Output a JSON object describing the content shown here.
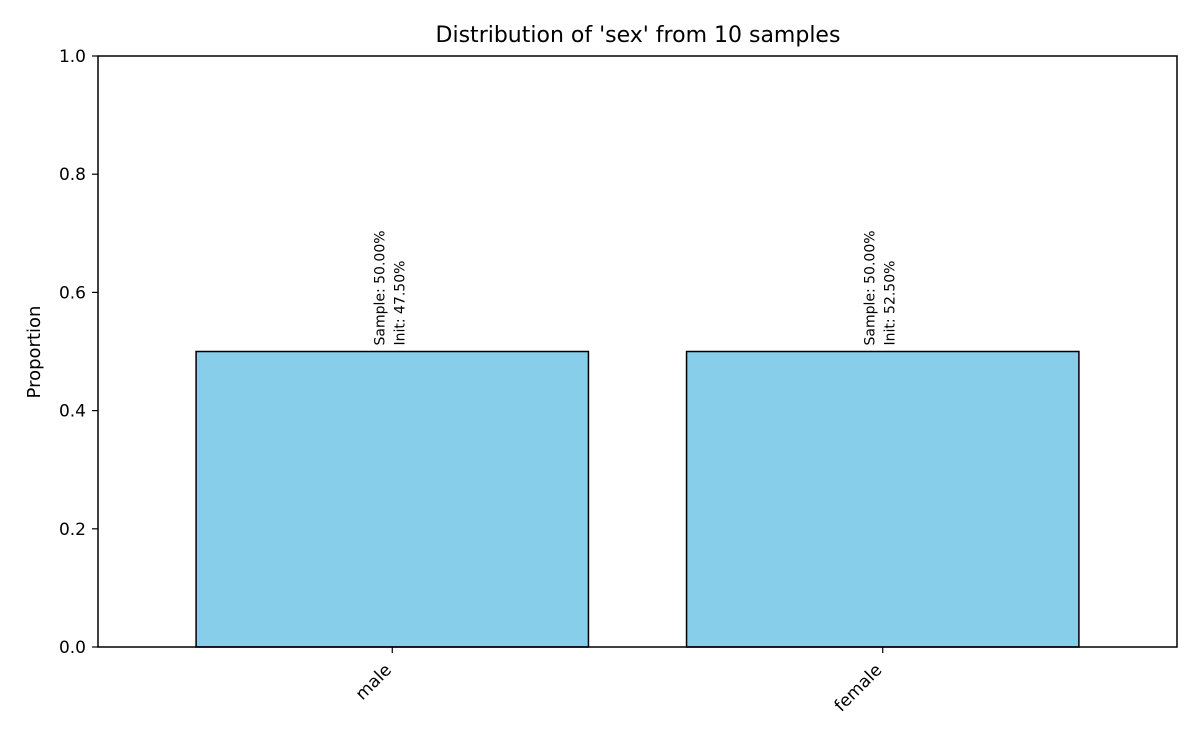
{
  "chart_data": {
    "type": "bar",
    "title": "Distribution of 'sex' from 10 samples",
    "xlabel": "",
    "ylabel": "Proportion",
    "categories": [
      "male",
      "female"
    ],
    "values": [
      0.5,
      0.5
    ],
    "annotations": [
      [
        "Sample: 50.00%",
        "Init: 47.50%"
      ],
      [
        "Sample: 50.00%",
        "Init: 52.50%"
      ]
    ],
    "ylim": [
      0,
      1.0
    ],
    "yticks": [
      "0.0",
      "0.2",
      "0.4",
      "0.6",
      "0.8",
      "1.0"
    ],
    "grid": false,
    "bar_color": "#87CEEB",
    "edge_color": "#000000"
  }
}
